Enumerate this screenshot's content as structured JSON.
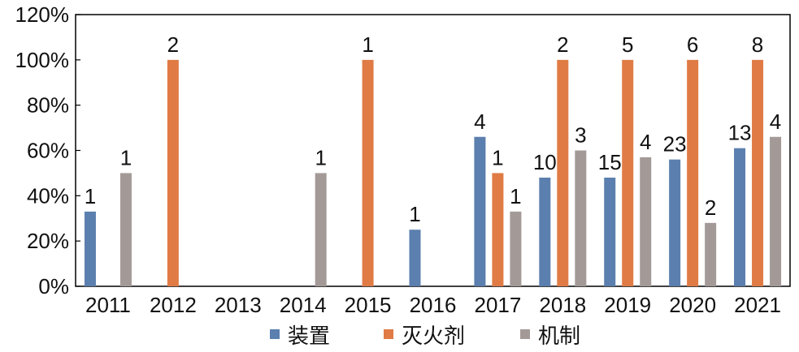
{
  "chart_data": {
    "type": "bar",
    "title": "",
    "xlabel": "",
    "ylabel": "",
    "ylim": [
      0,
      1.2
    ],
    "yticks": [
      "0%",
      "20%",
      "40%",
      "60%",
      "80%",
      "100%",
      "120%"
    ],
    "categories": [
      "2011",
      "2012",
      "2013",
      "2014",
      "2015",
      "2016",
      "2017",
      "2018",
      "2019",
      "2020",
      "2021"
    ],
    "legend_position": "bottom",
    "grid": false,
    "series": [
      {
        "name": "装置",
        "color": "#5b7fae",
        "values": [
          0.33,
          null,
          null,
          null,
          null,
          0.25,
          0.66,
          0.48,
          0.48,
          0.56,
          0.61
        ],
        "labels": [
          "1",
          "",
          "",
          "",
          "",
          "1",
          "4",
          "10",
          "15",
          "23",
          "13"
        ]
      },
      {
        "name": "灭火剂",
        "color": "#e07b45",
        "values": [
          null,
          1.0,
          null,
          null,
          1.0,
          null,
          0.5,
          1.0,
          1.0,
          1.0,
          1.0
        ],
        "labels": [
          "",
          "2",
          "",
          "",
          "1",
          "",
          "1",
          "2",
          "5",
          "6",
          "8"
        ]
      },
      {
        "name": "机制",
        "color": "#a39a98",
        "values": [
          0.5,
          null,
          null,
          0.5,
          null,
          null,
          0.33,
          0.6,
          0.57,
          0.28,
          0.66
        ],
        "labels": [
          "1",
          "",
          "",
          "1",
          "",
          "",
          "1",
          "3",
          "4",
          "2",
          "4"
        ]
      }
    ]
  }
}
